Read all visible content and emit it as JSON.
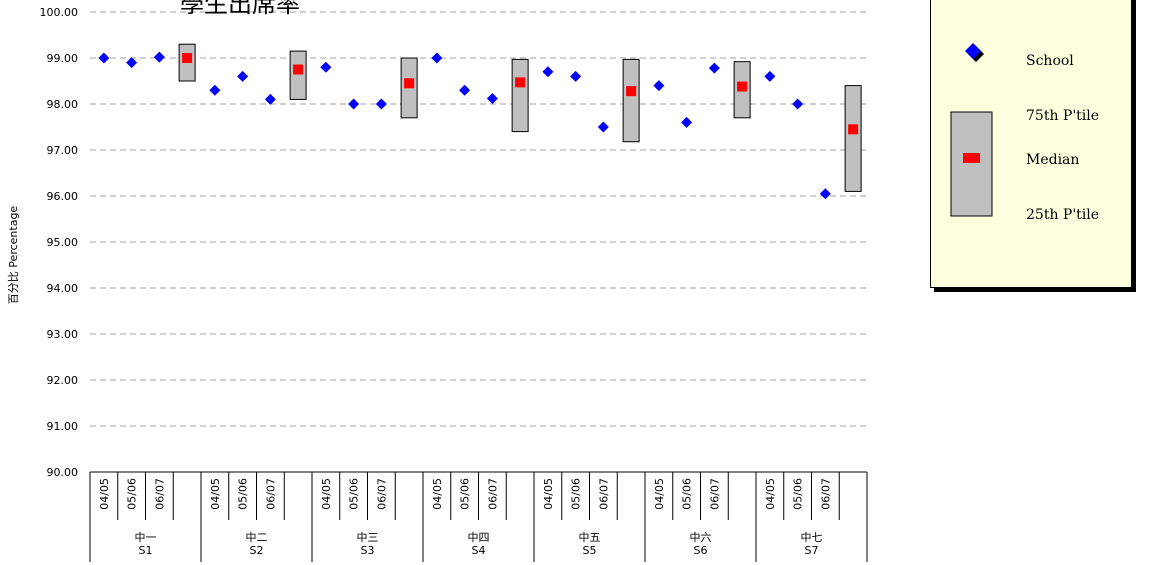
{
  "chart_data": {
    "type": "scatter",
    "title": "學生出席率",
    "ylabel": "百分比 Percentage",
    "ylim": [
      90,
      100
    ],
    "yticks": [
      "90.00",
      "91.00",
      "92.00",
      "93.00",
      "94.00",
      "95.00",
      "96.00",
      "97.00",
      "98.00",
      "99.00",
      "100.00"
    ],
    "grid": true,
    "legend_position": "top-right",
    "groups": [
      {
        "label_zh": "中一",
        "label_en": "S1",
        "years": [
          "04/05",
          "05/06",
          "06/07"
        ],
        "school": [
          99.0,
          98.9,
          99.02
        ],
        "p25": 98.5,
        "median": 99.0,
        "p75": 99.3
      },
      {
        "label_zh": "中二",
        "label_en": "S2",
        "years": [
          "04/05",
          "05/06",
          "06/07"
        ],
        "school": [
          98.3,
          98.6,
          98.1
        ],
        "p25": 98.1,
        "median": 98.75,
        "p75": 99.15
      },
      {
        "label_zh": "中三",
        "label_en": "S3",
        "years": [
          "04/05",
          "05/06",
          "06/07"
        ],
        "school": [
          98.8,
          98.0,
          98.0
        ],
        "p25": 97.7,
        "median": 98.45,
        "p75": 99.0
      },
      {
        "label_zh": "中四",
        "label_en": "S4",
        "years": [
          "04/05",
          "05/06",
          "06/07"
        ],
        "school": [
          99.0,
          98.3,
          98.12
        ],
        "p25": 97.4,
        "median": 98.47,
        "p75": 98.97
      },
      {
        "label_zh": "中五",
        "label_en": "S5",
        "years": [
          "04/05",
          "05/06",
          "06/07"
        ],
        "school": [
          98.7,
          98.6,
          97.5
        ],
        "p25": 97.18,
        "median": 98.28,
        "p75": 98.97
      },
      {
        "label_zh": "中六",
        "label_en": "S6",
        "years": [
          "04/05",
          "05/06",
          "06/07"
        ],
        "school": [
          98.4,
          97.6,
          98.78
        ],
        "p25": 97.7,
        "median": 98.38,
        "p75": 98.92
      },
      {
        "label_zh": "中七",
        "label_en": "S7",
        "years": [
          "04/05",
          "05/06",
          "06/07"
        ],
        "school": [
          98.6,
          98.0,
          96.05
        ],
        "p25": 96.1,
        "median": 97.45,
        "p75": 98.4
      }
    ],
    "legend": {
      "school": "School",
      "p75": "75th P'tile",
      "median": "Median",
      "p25": "25th P'tile"
    },
    "colors": {
      "school": "#0000ff",
      "median": "#ff0000",
      "box": "#c0c0c0",
      "grid": "#a0a0a0"
    }
  }
}
